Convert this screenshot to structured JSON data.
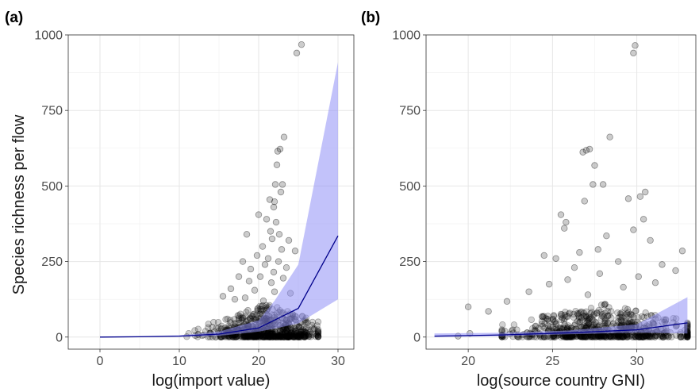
{
  "figure": {
    "ylabel": "Species richness per flow"
  },
  "chart_data": [
    {
      "type": "scatter",
      "panel_label": "(a)",
      "xlabel": "log(import value)",
      "ylabel": "Species richness per flow",
      "xlim": [
        -4,
        32
      ],
      "ylim": [
        -40,
        1000
      ],
      "xticks": [
        0,
        10,
        20,
        30
      ],
      "yticks": [
        0,
        250,
        500,
        750,
        1000
      ],
      "grid": true,
      "point_color": "#000000",
      "fit_color": "#00008b",
      "ribbon_color": "#8f8ff5",
      "fit_line": {
        "x": [
          0,
          5,
          10,
          15,
          20,
          25,
          30
        ],
        "y": [
          0,
          1,
          3,
          10,
          30,
          95,
          335
        ]
      },
      "ribbon": {
        "x": [
          0,
          5,
          10,
          15,
          20,
          22,
          25,
          30
        ],
        "lower": [
          0,
          0,
          1,
          4,
          18,
          28,
          45,
          125
        ],
        "upper": [
          2,
          3,
          6,
          18,
          55,
          120,
          240,
          910
        ]
      },
      "highlighted_points": [
        {
          "x": 24.8,
          "y": 940
        },
        {
          "x": 25.4,
          "y": 968
        },
        {
          "x": 23.2,
          "y": 662
        },
        {
          "x": 22.7,
          "y": 622
        },
        {
          "x": 22.4,
          "y": 615
        },
        {
          "x": 22.3,
          "y": 570
        },
        {
          "x": 22.1,
          "y": 505
        },
        {
          "x": 23.0,
          "y": 505
        },
        {
          "x": 22.8,
          "y": 480
        },
        {
          "x": 21.4,
          "y": 455
        },
        {
          "x": 22.0,
          "y": 448
        },
        {
          "x": 21.9,
          "y": 430
        },
        {
          "x": 20.0,
          "y": 405
        },
        {
          "x": 21.0,
          "y": 390
        },
        {
          "x": 22.2,
          "y": 380
        },
        {
          "x": 21.5,
          "y": 350
        },
        {
          "x": 18.5,
          "y": 340
        },
        {
          "x": 22.6,
          "y": 340
        },
        {
          "x": 21.7,
          "y": 325
        },
        {
          "x": 23.8,
          "y": 320
        },
        {
          "x": 20.5,
          "y": 300
        },
        {
          "x": 22.9,
          "y": 290
        },
        {
          "x": 24.6,
          "y": 285
        },
        {
          "x": 19.8,
          "y": 270
        },
        {
          "x": 21.2,
          "y": 260
        },
        {
          "x": 18.0,
          "y": 250
        },
        {
          "x": 22.5,
          "y": 250
        },
        {
          "x": 20.8,
          "y": 240
        },
        {
          "x": 23.5,
          "y": 230
        },
        {
          "x": 19.0,
          "y": 225
        },
        {
          "x": 21.9,
          "y": 215
        },
        {
          "x": 17.5,
          "y": 200
        },
        {
          "x": 20.2,
          "y": 200
        },
        {
          "x": 23.1,
          "y": 195
        },
        {
          "x": 18.8,
          "y": 185
        },
        {
          "x": 21.6,
          "y": 180
        },
        {
          "x": 16.5,
          "y": 160
        },
        {
          "x": 19.5,
          "y": 155
        },
        {
          "x": 22.0,
          "y": 150
        },
        {
          "x": 24.0,
          "y": 145
        },
        {
          "x": 15.5,
          "y": 135
        },
        {
          "x": 18.3,
          "y": 130
        },
        {
          "x": 17.0,
          "y": 125
        },
        {
          "x": 20.6,
          "y": 120
        }
      ],
      "bulk_cloud": {
        "x_center": 21,
        "x_spread": 3.5,
        "x_min": 4.5,
        "x_max": 27.5,
        "y_typical_max": 110,
        "count": 650
      }
    },
    {
      "type": "scatter",
      "panel_label": "(b)",
      "xlabel": "log(source country GNI)",
      "ylabel": "",
      "xlim": [
        17.5,
        33.5
      ],
      "ylim": [
        -40,
        1000
      ],
      "xticks": [
        20,
        25,
        30
      ],
      "yticks": [
        0,
        250,
        500,
        750,
        1000
      ],
      "grid": true,
      "point_color": "#000000",
      "fit_color": "#00008b",
      "ribbon_color": "#8f8ff5",
      "fit_line": {
        "x": [
          18,
          22,
          26,
          30,
          33
        ],
        "y": [
          3,
          7,
          14,
          24,
          47
        ]
      },
      "ribbon": {
        "x": [
          18,
          22,
          26,
          30,
          33
        ],
        "lower": [
          0,
          3,
          9,
          15,
          12
        ],
        "upper": [
          12,
          14,
          22,
          42,
          132
        ]
      },
      "highlighted_points": [
        {
          "x": 29.8,
          "y": 940
        },
        {
          "x": 29.9,
          "y": 965
        },
        {
          "x": 26.8,
          "y": 612
        },
        {
          "x": 27.0,
          "y": 618
        },
        {
          "x": 27.2,
          "y": 622
        },
        {
          "x": 28.4,
          "y": 662
        },
        {
          "x": 27.5,
          "y": 568
        },
        {
          "x": 27.4,
          "y": 505
        },
        {
          "x": 28.0,
          "y": 505
        },
        {
          "x": 30.2,
          "y": 465
        },
        {
          "x": 30.5,
          "y": 480
        },
        {
          "x": 26.9,
          "y": 450
        },
        {
          "x": 29.5,
          "y": 458
        },
        {
          "x": 25.5,
          "y": 405
        },
        {
          "x": 30.4,
          "y": 390
        },
        {
          "x": 25.8,
          "y": 380
        },
        {
          "x": 25.7,
          "y": 360
        },
        {
          "x": 28.2,
          "y": 335
        },
        {
          "x": 29.8,
          "y": 355
        },
        {
          "x": 30.8,
          "y": 320
        },
        {
          "x": 24.5,
          "y": 270
        },
        {
          "x": 26.6,
          "y": 280
        },
        {
          "x": 27.7,
          "y": 290
        },
        {
          "x": 25.2,
          "y": 260
        },
        {
          "x": 28.9,
          "y": 250
        },
        {
          "x": 31.5,
          "y": 240
        },
        {
          "x": 32.7,
          "y": 285
        },
        {
          "x": 26.3,
          "y": 230
        },
        {
          "x": 32.3,
          "y": 220
        },
        {
          "x": 27.8,
          "y": 210
        },
        {
          "x": 30.1,
          "y": 200
        },
        {
          "x": 25.9,
          "y": 190
        },
        {
          "x": 31.1,
          "y": 180
        },
        {
          "x": 24.8,
          "y": 175
        },
        {
          "x": 29.2,
          "y": 165
        },
        {
          "x": 23.6,
          "y": 150
        },
        {
          "x": 27.1,
          "y": 140
        },
        {
          "x": 22.3,
          "y": 118
        },
        {
          "x": 20.0,
          "y": 100
        },
        {
          "x": 21.2,
          "y": 85
        },
        {
          "x": 20.1,
          "y": 12
        },
        {
          "x": 19.4,
          "y": 3
        }
      ],
      "bulk_cloud": {
        "x_center": 28,
        "x_spread": 2.8,
        "x_min": 22,
        "x_max": 33,
        "y_typical_max": 110,
        "count": 700
      }
    }
  ]
}
